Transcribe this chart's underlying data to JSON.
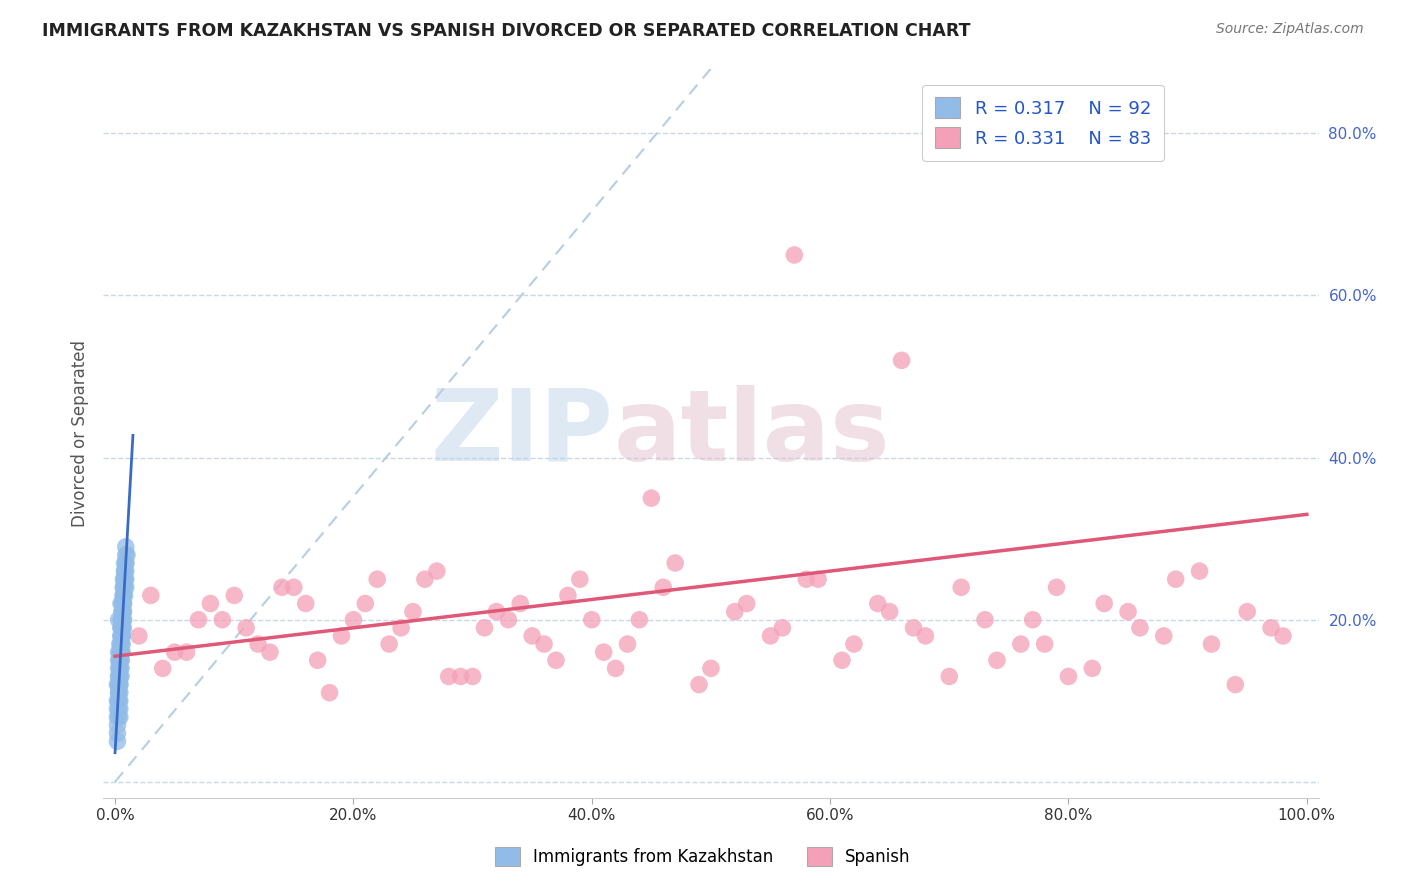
{
  "title": "IMMIGRANTS FROM KAZAKHSTAN VS SPANISH DIVORCED OR SEPARATED CORRELATION CHART",
  "source": "Source: ZipAtlas.com",
  "ylabel": "Divorced or Separated",
  "legend1_label": "Immigrants from Kazakhstan",
  "legend2_label": "Spanish",
  "r1": "0.317",
  "n1": "92",
  "r2": "0.331",
  "n2": "83",
  "color1": "#92bce8",
  "color2": "#f4a0b8",
  "trendline1_color": "#3a6bc4",
  "trendline2_color": "#e05878",
  "ref_line_color": "#b0c8e0",
  "background_color": "#ffffff",
  "grid_color": "#c8d8e8",
  "xlim": [
    -0.01,
    1.01
  ],
  "ylim": [
    -0.02,
    0.88
  ],
  "xticks": [
    0.0,
    0.2,
    0.4,
    0.6,
    0.8,
    1.0
  ],
  "yticks": [
    0.0,
    0.2,
    0.4,
    0.6,
    0.8
  ],
  "xticklabels": [
    "0.0%",
    "20.0%",
    "40.0%",
    "60.0%",
    "80.0%",
    "100.0%"
  ],
  "right_yticklabels": [
    "",
    "20.0%",
    "40.0%",
    "60.0%",
    "80.0%"
  ],
  "watermark_zip": "ZIP",
  "watermark_atlas": "atlas",
  "blue_scatter_x": [
    0.005,
    0.008,
    0.003,
    0.01,
    0.006,
    0.004,
    0.007,
    0.002,
    0.009,
    0.005,
    0.003,
    0.007,
    0.004,
    0.006,
    0.008,
    0.003,
    0.005,
    0.007,
    0.004,
    0.006,
    0.002,
    0.009,
    0.005,
    0.003,
    0.007,
    0.004,
    0.006,
    0.008,
    0.003,
    0.005,
    0.007,
    0.004,
    0.006,
    0.002,
    0.009,
    0.005,
    0.003,
    0.007,
    0.004,
    0.006,
    0.008,
    0.003,
    0.005,
    0.007,
    0.004,
    0.006,
    0.002,
    0.009,
    0.005,
    0.003,
    0.007,
    0.004,
    0.006,
    0.008,
    0.003,
    0.005,
    0.007,
    0.004,
    0.006,
    0.002,
    0.009,
    0.005,
    0.003,
    0.007,
    0.004,
    0.006,
    0.008,
    0.003,
    0.005,
    0.007,
    0.004,
    0.006,
    0.002,
    0.009,
    0.005,
    0.003,
    0.007,
    0.004,
    0.006,
    0.008,
    0.003,
    0.005,
    0.007,
    0.004,
    0.006,
    0.002,
    0.009,
    0.005,
    0.003,
    0.007,
    0.004,
    0.006
  ],
  "blue_scatter_y": [
    0.22,
    0.25,
    0.2,
    0.28,
    0.18,
    0.15,
    0.23,
    0.12,
    0.27,
    0.19,
    0.16,
    0.24,
    0.14,
    0.21,
    0.26,
    0.13,
    0.2,
    0.22,
    0.17,
    0.19,
    0.1,
    0.28,
    0.18,
    0.15,
    0.25,
    0.13,
    0.21,
    0.27,
    0.12,
    0.19,
    0.23,
    0.16,
    0.22,
    0.09,
    0.29,
    0.17,
    0.14,
    0.24,
    0.12,
    0.2,
    0.26,
    0.11,
    0.18,
    0.22,
    0.15,
    0.21,
    0.08,
    0.27,
    0.16,
    0.13,
    0.23,
    0.11,
    0.19,
    0.25,
    0.1,
    0.17,
    0.21,
    0.14,
    0.2,
    0.07,
    0.26,
    0.15,
    0.12,
    0.22,
    0.1,
    0.18,
    0.24,
    0.09,
    0.16,
    0.2,
    0.13,
    0.19,
    0.06,
    0.25,
    0.14,
    0.11,
    0.21,
    0.09,
    0.17,
    0.23,
    0.08,
    0.15,
    0.19,
    0.12,
    0.18,
    0.05,
    0.24,
    0.13,
    0.1,
    0.2,
    0.08,
    0.16
  ],
  "pink_scatter_x": [
    0.02,
    0.05,
    0.08,
    0.11,
    0.14,
    0.17,
    0.2,
    0.23,
    0.26,
    0.29,
    0.32,
    0.35,
    0.38,
    0.41,
    0.44,
    0.47,
    0.5,
    0.53,
    0.56,
    0.59,
    0.62,
    0.65,
    0.68,
    0.71,
    0.74,
    0.77,
    0.8,
    0.83,
    0.86,
    0.89,
    0.92,
    0.95,
    0.98,
    0.04,
    0.07,
    0.1,
    0.13,
    0.16,
    0.19,
    0.22,
    0.25,
    0.28,
    0.31,
    0.34,
    0.37,
    0.4,
    0.43,
    0.46,
    0.49,
    0.52,
    0.55,
    0.58,
    0.61,
    0.64,
    0.67,
    0.7,
    0.73,
    0.76,
    0.79,
    0.82,
    0.85,
    0.88,
    0.91,
    0.94,
    0.97,
    0.03,
    0.06,
    0.09,
    0.12,
    0.15,
    0.18,
    0.21,
    0.24,
    0.27,
    0.3,
    0.33,
    0.36,
    0.39,
    0.42,
    0.45,
    0.78,
    0.66,
    0.57
  ],
  "pink_scatter_y": [
    0.18,
    0.16,
    0.22,
    0.19,
    0.24,
    0.15,
    0.2,
    0.17,
    0.25,
    0.13,
    0.21,
    0.18,
    0.23,
    0.16,
    0.2,
    0.27,
    0.14,
    0.22,
    0.19,
    0.25,
    0.17,
    0.21,
    0.18,
    0.24,
    0.15,
    0.2,
    0.13,
    0.22,
    0.19,
    0.25,
    0.17,
    0.21,
    0.18,
    0.14,
    0.2,
    0.23,
    0.16,
    0.22,
    0.18,
    0.25,
    0.21,
    0.13,
    0.19,
    0.22,
    0.15,
    0.2,
    0.17,
    0.24,
    0.12,
    0.21,
    0.18,
    0.25,
    0.15,
    0.22,
    0.19,
    0.13,
    0.2,
    0.17,
    0.24,
    0.14,
    0.21,
    0.18,
    0.26,
    0.12,
    0.19,
    0.23,
    0.16,
    0.2,
    0.17,
    0.24,
    0.11,
    0.22,
    0.19,
    0.26,
    0.13,
    0.2,
    0.17,
    0.25,
    0.14,
    0.35,
    0.17,
    0.52,
    0.65
  ],
  "pink_trendline_x0": 0.0,
  "pink_trendline_y0": 0.155,
  "pink_trendline_x1": 1.0,
  "pink_trendline_y1": 0.33,
  "blue_trendline_x0": 0.0,
  "blue_trendline_x1": 0.012
}
